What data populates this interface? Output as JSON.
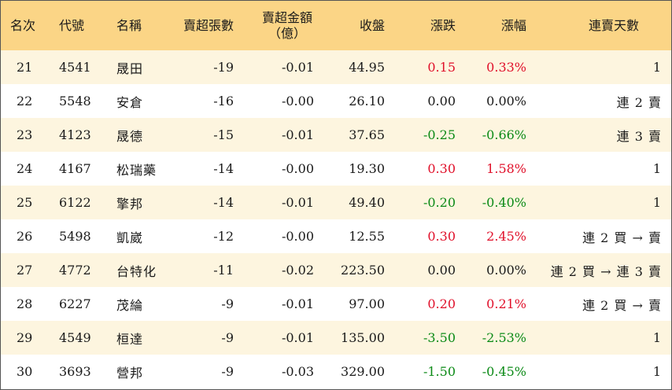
{
  "colors": {
    "header_bg": "#fbd586",
    "stripe_bg": "#fdf5df",
    "up": "#e0102a",
    "down": "#0b8a16",
    "flat": "#1a1a1a"
  },
  "header": {
    "rank": "名次",
    "code": "代號",
    "name": "名稱",
    "sell_volume": "賣超張數",
    "sell_amount_line1": "賣超金額",
    "sell_amount_line2": "（億）",
    "close": "收盤",
    "change": "漲跌",
    "change_pct": "漲幅",
    "consecutive_days": "連賣天數"
  },
  "rows": [
    {
      "rank": "21",
      "code": "4541",
      "name": "晟田",
      "sell_volume": "-19",
      "sell_amount": "-0.01",
      "close": "44.95",
      "change": "0.15",
      "change_pct": "0.33%",
      "direction": "up",
      "consecutive_days": "1"
    },
    {
      "rank": "22",
      "code": "5548",
      "name": "安倉",
      "sell_volume": "-16",
      "sell_amount": "-0.00",
      "close": "26.10",
      "change": "0.00",
      "change_pct": "0.00%",
      "direction": "flat",
      "consecutive_days": "連 2 賣"
    },
    {
      "rank": "23",
      "code": "4123",
      "name": "晟德",
      "sell_volume": "-15",
      "sell_amount": "-0.01",
      "close": "37.65",
      "change": "-0.25",
      "change_pct": "-0.66%",
      "direction": "down",
      "consecutive_days": "連 3 賣"
    },
    {
      "rank": "24",
      "code": "4167",
      "name": "松瑞藥",
      "sell_volume": "-14",
      "sell_amount": "-0.00",
      "close": "19.30",
      "change": "0.30",
      "change_pct": "1.58%",
      "direction": "up",
      "consecutive_days": "1"
    },
    {
      "rank": "25",
      "code": "6122",
      "name": "擎邦",
      "sell_volume": "-14",
      "sell_amount": "-0.01",
      "close": "49.40",
      "change": "-0.20",
      "change_pct": "-0.40%",
      "direction": "down",
      "consecutive_days": "1"
    },
    {
      "rank": "26",
      "code": "5498",
      "name": "凱崴",
      "sell_volume": "-12",
      "sell_amount": "-0.00",
      "close": "12.55",
      "change": "0.30",
      "change_pct": "2.45%",
      "direction": "up",
      "consecutive_days": "連 2 買 → 賣"
    },
    {
      "rank": "27",
      "code": "4772",
      "name": "台特化",
      "sell_volume": "-11",
      "sell_amount": "-0.02",
      "close": "223.50",
      "change": "0.00",
      "change_pct": "0.00%",
      "direction": "flat",
      "consecutive_days": "連 2 買 → 連 3 賣"
    },
    {
      "rank": "28",
      "code": "6227",
      "name": "茂綸",
      "sell_volume": "-9",
      "sell_amount": "-0.01",
      "close": "97.00",
      "change": "0.20",
      "change_pct": "0.21%",
      "direction": "up",
      "consecutive_days": "連 2 買 → 賣"
    },
    {
      "rank": "29",
      "code": "4549",
      "name": "桓達",
      "sell_volume": "-9",
      "sell_amount": "-0.01",
      "close": "135.00",
      "change": "-3.50",
      "change_pct": "-2.53%",
      "direction": "down",
      "consecutive_days": "1"
    },
    {
      "rank": "30",
      "code": "3693",
      "name": "營邦",
      "sell_volume": "-9",
      "sell_amount": "-0.03",
      "close": "329.00",
      "change": "-1.50",
      "change_pct": "-0.45%",
      "direction": "down",
      "consecutive_days": "1"
    }
  ]
}
